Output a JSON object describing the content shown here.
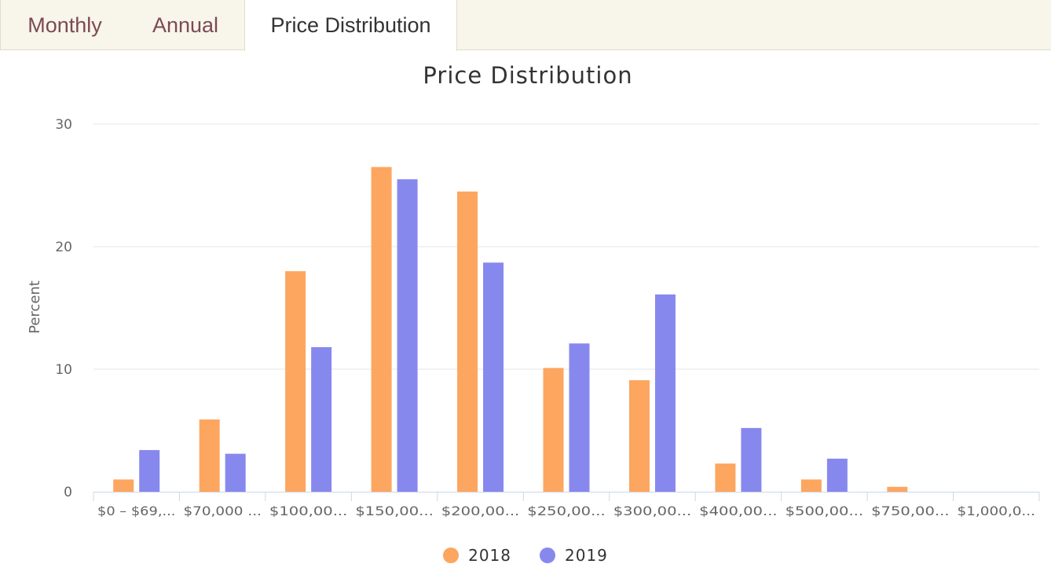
{
  "tabs": [
    {
      "label": "Monthly",
      "active": false
    },
    {
      "label": "Annual",
      "active": false
    },
    {
      "label": "Price Distribution",
      "active": true
    }
  ],
  "chart_data": {
    "type": "bar",
    "title": "Price Distribution",
    "xlabel": "",
    "ylabel": "Percent",
    "ylim": [
      0,
      30
    ],
    "yticks": [
      0,
      10,
      20,
      30
    ],
    "grid": true,
    "legend_position": "bottom-center",
    "categories": [
      "$0 – $69,...",
      "$70,000 ...",
      "$100,00...",
      "$150,00...",
      "$200,00...",
      "$250,00...",
      "$300,00...",
      "$400,00...",
      "$500,00...",
      "$750,00...",
      "$1,000,0..."
    ],
    "series": [
      {
        "name": "2018",
        "color": "#fda65f",
        "values": [
          1.0,
          5.9,
          18.0,
          26.5,
          24.5,
          10.1,
          9.1,
          2.3,
          1.0,
          0.4,
          0
        ]
      },
      {
        "name": "2019",
        "color": "#8788ee",
        "values": [
          3.4,
          3.1,
          11.8,
          25.5,
          18.7,
          12.1,
          16.1,
          5.2,
          2.7,
          0,
          0
        ]
      }
    ]
  }
}
